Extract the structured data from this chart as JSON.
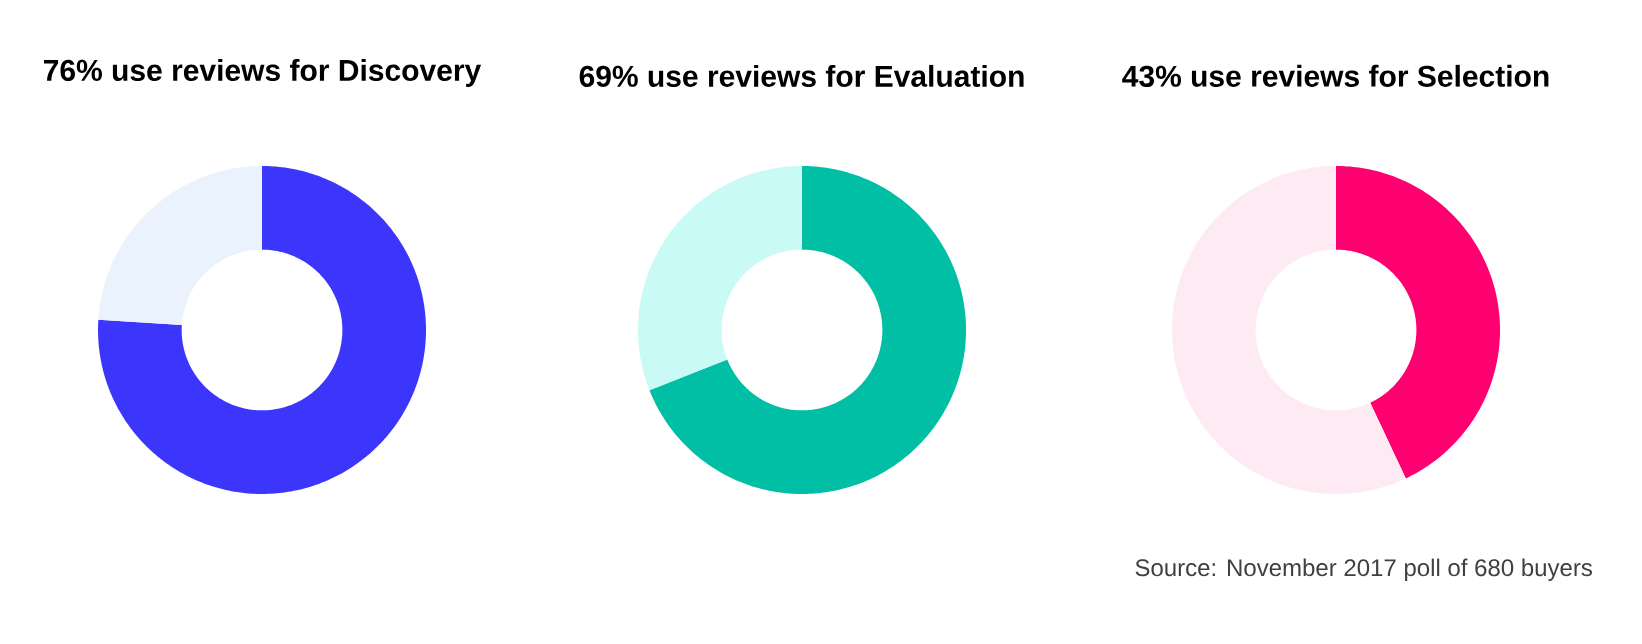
{
  "chart_data": [
    {
      "type": "donut",
      "title": "76% use reviews for Discovery",
      "categories": [
        null,
        null
      ],
      "values": [
        76,
        24
      ],
      "colors": [
        "#3c35fb",
        "#eaf3fd"
      ]
    },
    {
      "type": "donut",
      "title": "69% use reviews for Evaluation",
      "categories": [
        null,
        null
      ],
      "values": [
        69,
        31
      ],
      "colors": [
        "#00bfa5",
        "#c9faf5"
      ]
    },
    {
      "type": "donut",
      "title": "43% use reviews for Selection",
      "categories": [
        null,
        null
      ],
      "values": [
        43,
        57
      ],
      "colors": [
        "#fe0070",
        "#fdeaf3"
      ],
      "annotations": [
        "Source: November 2017 poll of 680 buyers"
      ]
    }
  ]
}
